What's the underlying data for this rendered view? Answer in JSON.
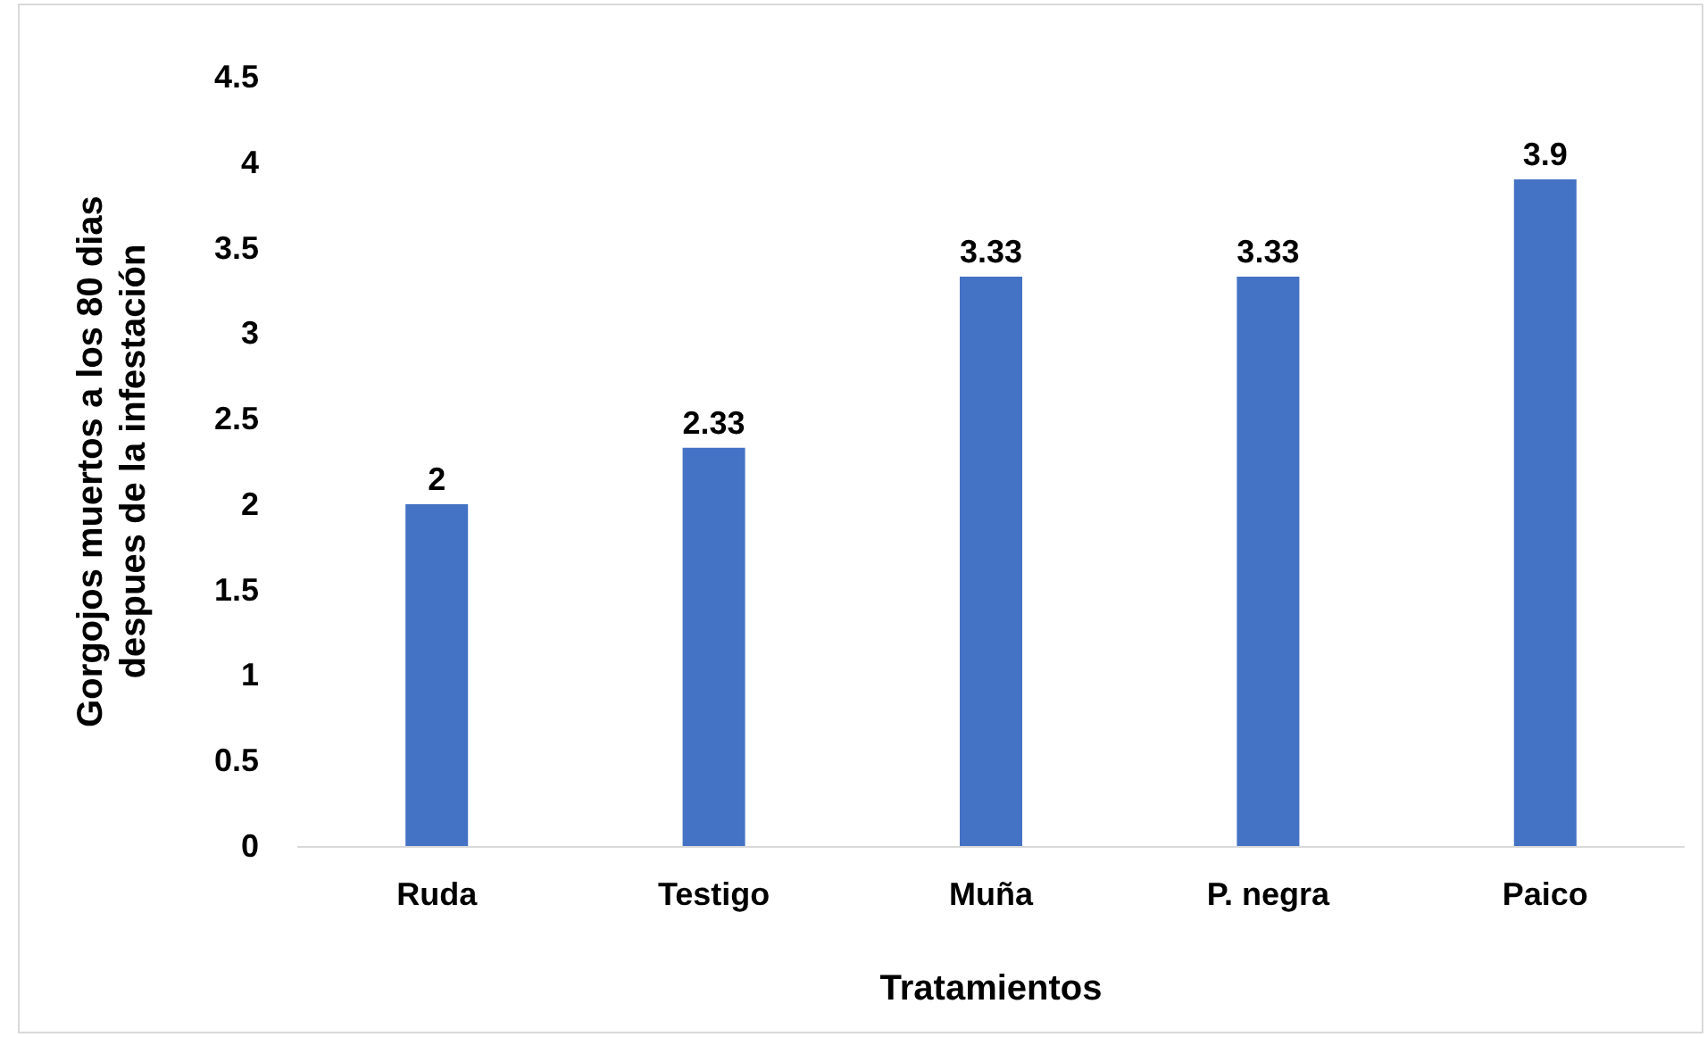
{
  "chart_data": {
    "type": "bar",
    "categories": [
      "Ruda",
      "Testigo",
      "Muña",
      "P. negra",
      "Paico"
    ],
    "values": [
      2,
      2.33,
      3.33,
      3.33,
      3.9
    ],
    "color": "#4472c4",
    "xlabel": "Tratamientos",
    "ylabel": "Gorgojos muertos a los 80 dias\ndespues de la infestación",
    "ylim": [
      0,
      4.5
    ],
    "yticks": [
      0,
      0.5,
      1,
      1.5,
      2,
      2.5,
      3,
      3.5,
      4,
      4.5
    ],
    "grid": false,
    "data_labels": true
  }
}
